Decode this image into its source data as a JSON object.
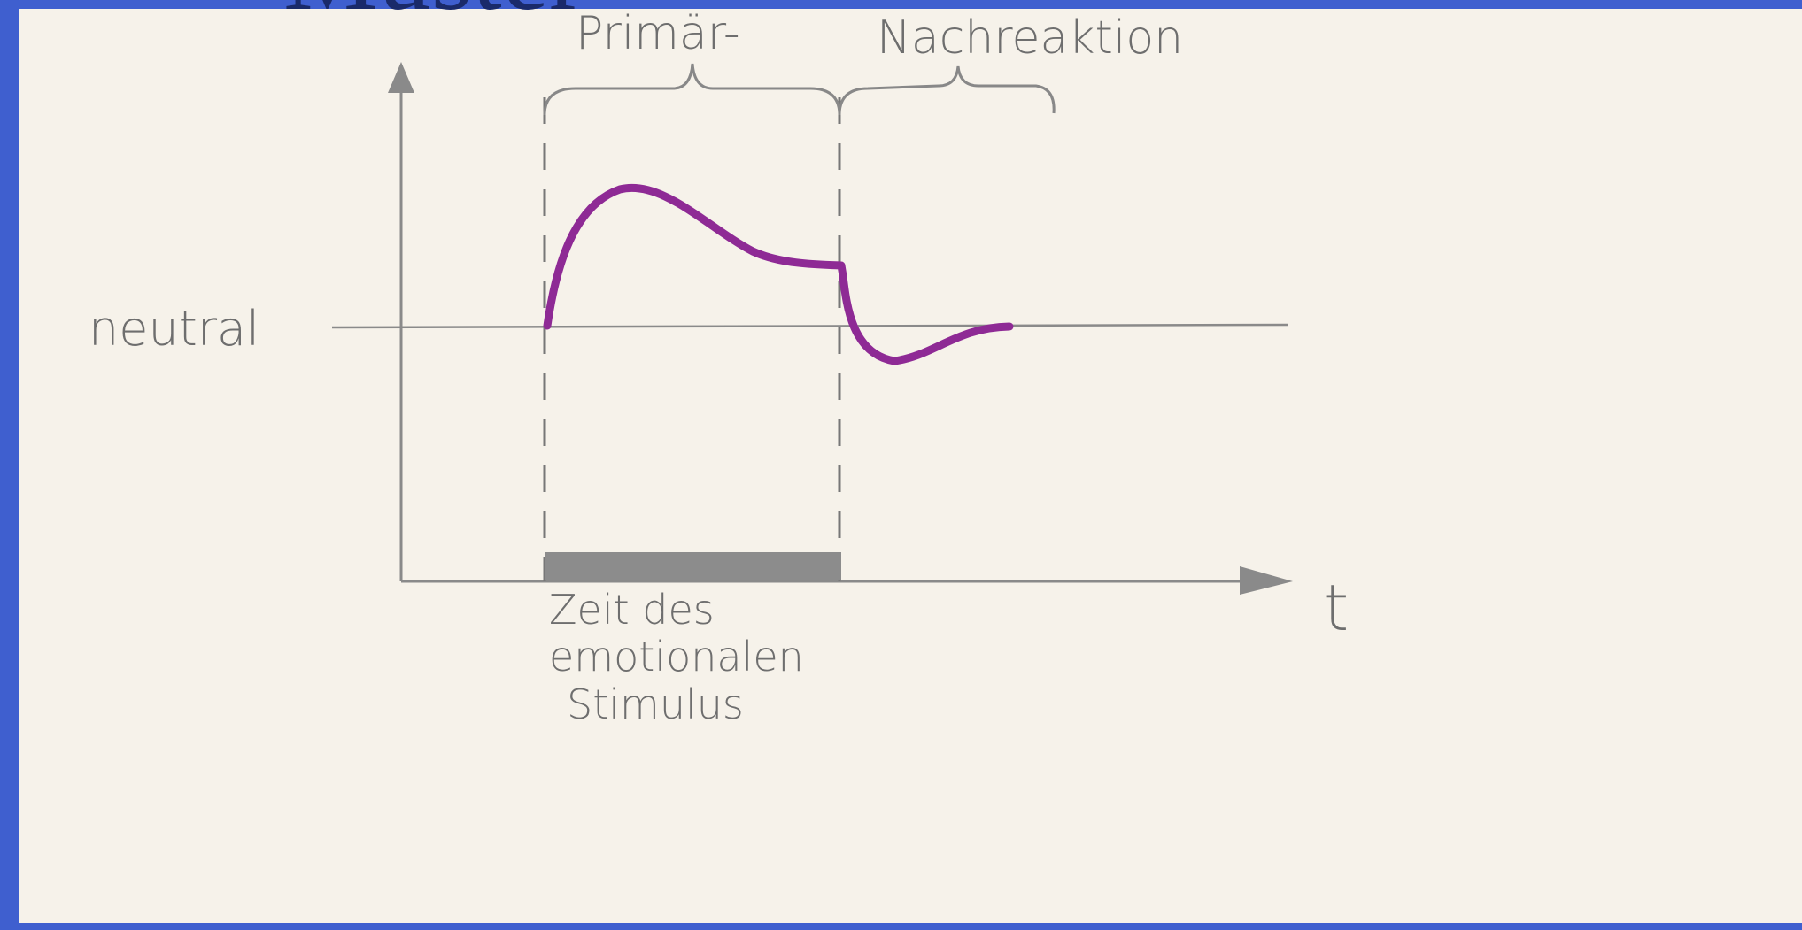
{
  "title": "Muster",
  "labels": {
    "primary": "Primär-",
    "after": "Nachreaktion",
    "neutral": "neutral",
    "axis_x": "t",
    "stimulus": [
      "Zeit des",
      "emotionalen",
      "Stimulus"
    ]
  }
}
